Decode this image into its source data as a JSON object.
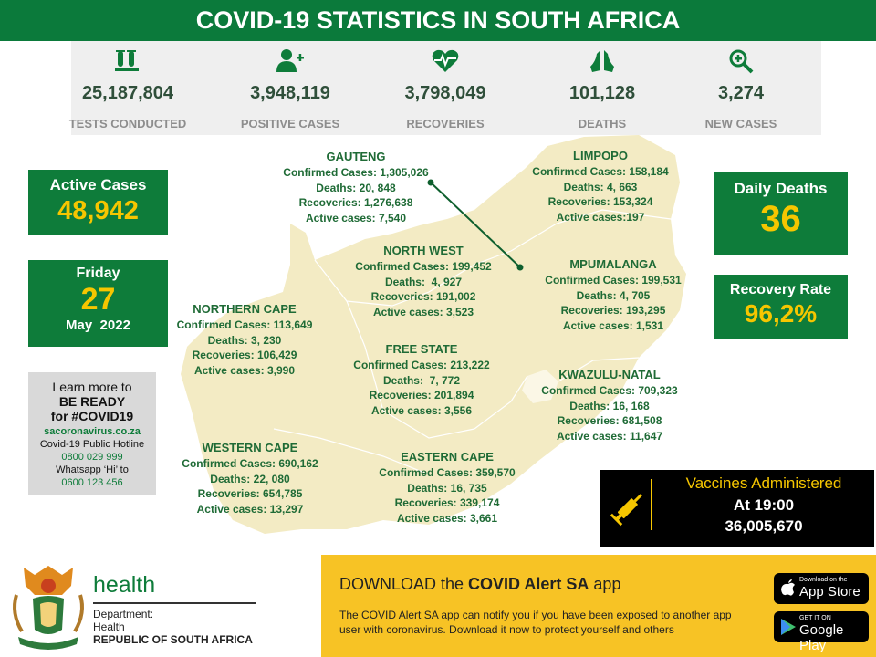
{
  "header": {
    "title": "COVID-19 STATISTICS IN SOUTH AFRICA"
  },
  "stats": [
    {
      "value": "25,187,804",
      "label": "TESTS CONDUCTED"
    },
    {
      "value": "3,948,119",
      "label": "POSITIVE CASES"
    },
    {
      "value": "3,798,049",
      "label": "RECOVERIES"
    },
    {
      "value": "101,128",
      "label": "DEATHS"
    },
    {
      "value": "3,274",
      "label": "NEW CASES"
    }
  ],
  "active_cases": {
    "label": "Active Cases",
    "value": "48,942"
  },
  "date": {
    "weekday": "Friday",
    "day": "27",
    "month_year": "May  2022"
  },
  "info": {
    "lines": [
      "Learn more to",
      "BE READY",
      "for #COVID19",
      "sacoronavirus.co.za",
      "Covid-19 Public Hotline",
      "0800 029 999",
      "Whatsapp ‘Hi’ to",
      "0600 123 456"
    ]
  },
  "daily_deaths": {
    "label": "Daily Deaths",
    "value": "36"
  },
  "recovery_rate": {
    "label": "Recovery Rate",
    "value": "96,2%"
  },
  "provinces": [
    {
      "name": "GAUTENG",
      "lines": [
        "Confirmed Cases: 1,305,026",
        "Deaths: 20, 848",
        "Recoveries: 1,276,638",
        "Active cases: 7,540"
      ]
    },
    {
      "name": "LIMPOPO",
      "lines": [
        "Confirmed Cases: 158,184",
        "Deaths: 4, 663",
        "Recoveries: 153,324",
        "Active cases:197"
      ]
    },
    {
      "name": "NORTH WEST",
      "lines": [
        "Confirmed Cases: 199,452",
        "Deaths:  4, 927",
        "Recoveries: 191,002",
        "Active cases: 3,523"
      ]
    },
    {
      "name": "MPUMALANGA",
      "lines": [
        "Confirmed Cases: 199,531",
        "Deaths: 4, 705",
        "Recoveries: 193,295",
        "Active cases: 1,531"
      ]
    },
    {
      "name": "NORTHERN CAPE",
      "lines": [
        "Confirmed Cases: 113,649",
        "Deaths: 3, 230",
        "Recoveries: 106,429",
        "Active cases: 3,990"
      ]
    },
    {
      "name": "FREE STATE",
      "lines": [
        "Confirmed Cases: 213,222",
        "Deaths:  7, 772",
        "Recoveries: 201,894",
        "Active cases: 3,556"
      ]
    },
    {
      "name": "KWAZULU-NATAL",
      "lines": [
        "Confirmed Cases: 709,323",
        "Deaths: 16, 168",
        "Recoveries: 681,508",
        "Active cases: 11,647"
      ]
    },
    {
      "name": "WESTERN CAPE",
      "lines": [
        "Confirmed Cases: 690,162",
        "Deaths: 22, 080",
        "Recoveries: 654,785",
        "Active cases: 13,297"
      ]
    },
    {
      "name": "EASTERN CAPE",
      "lines": [
        "Confirmed Cases: 359,570",
        "Deaths: 16, 735",
        "Recoveries: 339,174",
        "Active cases: 3,661"
      ]
    }
  ],
  "vaccines": {
    "title": "Vaccines Administered",
    "time": "At 19:00",
    "value": "36,005,670"
  },
  "department": {
    "brand": "health",
    "lines": [
      "Department:",
      "Health",
      "REPUBLIC OF SOUTH AFRICA"
    ]
  },
  "app_banner": {
    "heading_start": "DOWNLOAD the",
    "heading_bold": "COVID Alert SA",
    "heading_end": "app",
    "text": "The COVID Alert SA app can notify you if you have been exposed to another app user with coronavirus. Download it now to protect yourself and others",
    "buttons": [
      {
        "small": "Download on the",
        "big": "App Store"
      },
      {
        "small": "GET IT ON",
        "big": "Google Play"
      }
    ]
  }
}
